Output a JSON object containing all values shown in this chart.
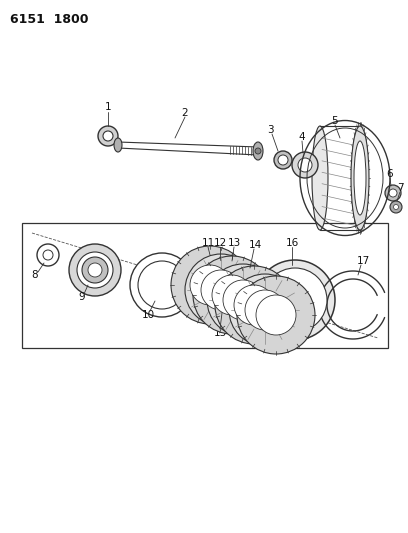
{
  "title": "6151  1800",
  "background_color": "#ffffff",
  "line_color": "#333333",
  "text_color": "#111111",
  "fig_width": 4.08,
  "fig_height": 5.33,
  "dpi": 100
}
